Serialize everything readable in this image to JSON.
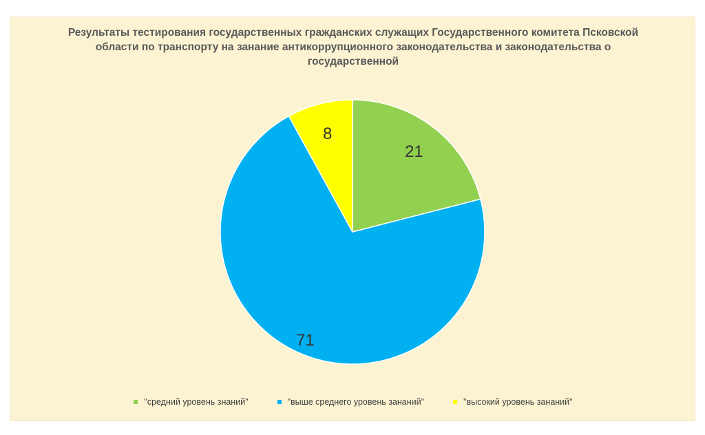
{
  "chart_data": {
    "type": "pie",
    "title": "Результаты тестирования государственных гражданских служащих Государственного комитета Псковской области по транспорту на занание антикоррупционного законодательства и законодательства о государственной",
    "categories": [
      "\"средний уровень знаний\"",
      "\"выше среднего уровень зананий\"",
      "\"высокий уровень зананий\""
    ],
    "values": [
      21,
      71,
      8
    ],
    "colors": [
      "#92d050",
      "#00b0f0",
      "#ffff00"
    ],
    "legend_position": "bottom",
    "start_angle_deg": 0,
    "direction": "clockwise"
  }
}
